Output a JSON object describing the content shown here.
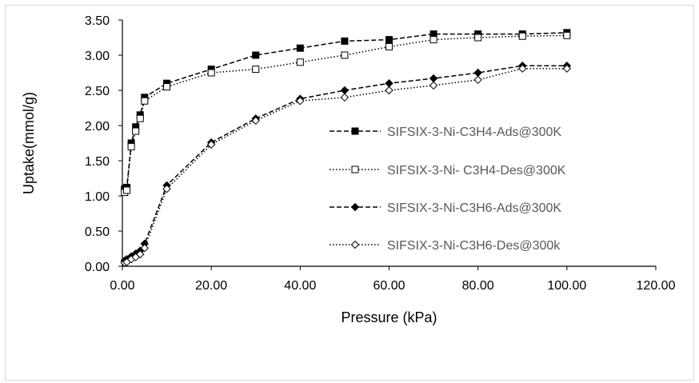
{
  "chart_data": {
    "type": "scatter",
    "xlabel": "Pressure (kPa)",
    "ylabel": "Uptake(mmol/g)",
    "xlim": [
      0,
      120
    ],
    "ylim": [
      0,
      3.5
    ],
    "x_ticks": [
      "0.00",
      "20.00",
      "40.00",
      "60.00",
      "80.00",
      "100.00",
      "120.00"
    ],
    "y_ticks": [
      "0.00",
      "0.50",
      "1.00",
      "1.50",
      "2.00",
      "2.50",
      "3.00",
      "3.50"
    ],
    "grid": false,
    "legend_position": "right",
    "series": [
      {
        "name": "SIFSIX-3-Ni-C3H4-Ads@300K",
        "marker": "square-filled",
        "line": "dashed",
        "x": [
          0.5,
          1,
          2,
          3,
          4,
          5,
          10,
          20,
          30,
          40,
          50,
          60,
          70,
          80,
          90,
          100
        ],
        "y": [
          1.1,
          1.12,
          1.75,
          1.98,
          2.15,
          2.4,
          2.6,
          2.8,
          3.0,
          3.1,
          3.2,
          3.22,
          3.3,
          3.3,
          3.3,
          3.32
        ]
      },
      {
        "name": "SIFSIX-3-Ni- C3H4-Des@300K",
        "marker": "square-open",
        "line": "dotted",
        "x": [
          0.5,
          1,
          2,
          3,
          4,
          5,
          10,
          20,
          30,
          40,
          50,
          60,
          70,
          80,
          90,
          100
        ],
        "y": [
          1.05,
          1.08,
          1.7,
          1.92,
          2.1,
          2.35,
          2.55,
          2.75,
          2.8,
          2.9,
          3.0,
          3.12,
          3.22,
          3.25,
          3.27,
          3.28
        ]
      },
      {
        "name": "SIFSIX-3-Ni-C3H6-Ads@300K",
        "marker": "diamond-filled",
        "line": "dashed",
        "x": [
          0.5,
          1,
          2,
          3,
          4,
          5,
          10,
          20,
          30,
          40,
          50,
          60,
          70,
          80,
          90,
          100
        ],
        "y": [
          0.08,
          0.1,
          0.14,
          0.18,
          0.22,
          0.32,
          1.15,
          1.76,
          2.1,
          2.38,
          2.5,
          2.6,
          2.67,
          2.75,
          2.85,
          2.85
        ]
      },
      {
        "name": "SIFSIX-3-Ni-C3H6-Des@300k",
        "marker": "diamond-open",
        "line": "dotted",
        "x": [
          0.5,
          1,
          2,
          3,
          4,
          5,
          10,
          20,
          30,
          40,
          50,
          60,
          70,
          80,
          90,
          100
        ],
        "y": [
          0.05,
          0.06,
          0.1,
          0.13,
          0.17,
          0.26,
          1.1,
          1.73,
          2.07,
          2.35,
          2.4,
          2.5,
          2.57,
          2.65,
          2.81,
          2.81
        ]
      }
    ]
  }
}
